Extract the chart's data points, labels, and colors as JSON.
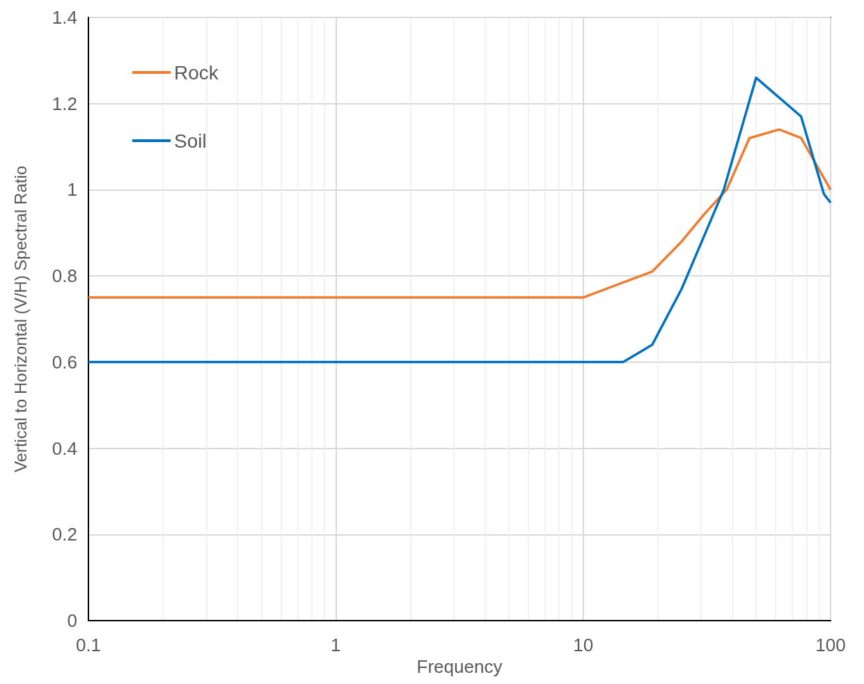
{
  "chart_data": {
    "type": "line",
    "xlabel": "Frequency",
    "ylabel": "Vertical to Horizontal (V/H) Spectral Ratio",
    "log": "x",
    "grid": true,
    "legend": "top left",
    "marker": "none",
    "line_style": "solid",
    "xlim": [
      0.1,
      100
    ],
    "xticks": [
      0.1,
      1,
      10,
      100
    ],
    "ylim": [
      0,
      1.4
    ],
    "yticks": [
      0,
      0.2,
      0.4,
      0.6,
      0.8,
      1,
      1.2,
      1.4
    ],
    "series": [
      {
        "name": "Rock",
        "color": "#ed7d31",
        "x": [
          0.1,
          10,
          19,
          25,
          30.5,
          38,
          47,
          62,
          76,
          100
        ],
        "values": [
          0.75,
          0.75,
          0.81,
          0.88,
          0.94,
          1.0,
          1.12,
          1.14,
          1.12,
          1.0
        ]
      },
      {
        "name": "Soil",
        "color": "#0070c0",
        "x": [
          0.1,
          14.5,
          19,
          25,
          37,
          50,
          76,
          94,
          100
        ],
        "values": [
          0.6,
          0.6,
          0.64,
          0.77,
          1.0,
          1.26,
          1.17,
          0.99,
          0.97
        ]
      }
    ]
  }
}
